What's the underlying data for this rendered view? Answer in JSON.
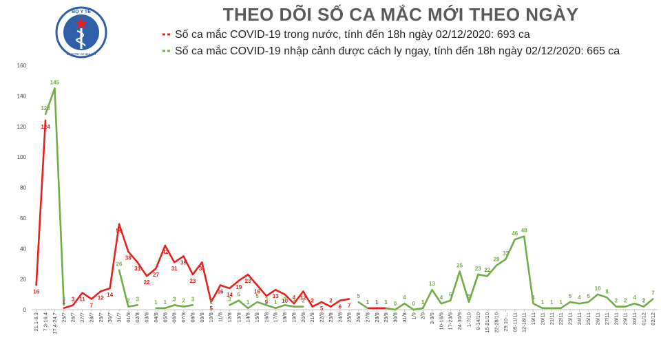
{
  "colors": {
    "domestic": "#e8201c",
    "imported": "#70ad47",
    "title": "#595959",
    "axis": "#bfbfbf",
    "logo_blue": "#2e5fa8"
  },
  "logo": {
    "icon": "ministry-of-health-seal-icon",
    "top_text": "BỘ Y TẾ",
    "bottom_text": "MINISTRY OF HEALTH"
  },
  "chart_data": {
    "type": "line",
    "title": "THEO DÕI SỐ CA MẮC MỚI THEO NGÀY",
    "xlabel": "",
    "ylabel": "",
    "ylim": [
      0,
      160
    ],
    "yticks": [
      0,
      20,
      40,
      60,
      80,
      100,
      120,
      140,
      160
    ],
    "grid": false,
    "legend_position": "top",
    "categories": [
      "21.1-6.3",
      "7.3-16.4",
      "17.4-24.7",
      "25/7",
      "26/7",
      "27/7",
      "28/7",
      "29/7",
      "30/7",
      "31/7",
      "01/8",
      "02/8",
      "03/8",
      "04/8",
      "05/8",
      "06/8",
      "07/8",
      "08/8",
      "09/8",
      "10/8",
      "11/8",
      "12/8",
      "13/8",
      "14/8",
      "15/8",
      "16/8",
      "17/8",
      "18/8",
      "19/8",
      "20/8",
      "21/8",
      "22/8",
      "23/8",
      "24/8",
      "25/8",
      "26/8",
      "27/8",
      "28/8",
      "29/8",
      "30/8",
      "31/8",
      "1/9",
      "2/9",
      "3-9/9",
      "10-16/9",
      "17-23/9",
      "24-30/9",
      "1-7/10",
      "8-14/10",
      "15-21/10",
      "22-28/10",
      "29.10-...",
      "05-11/11",
      "12-18/11",
      "19/11",
      "20/11",
      "21/11",
      "22/11",
      "23/11",
      "24/11",
      "25/11",
      "26/11",
      "27/11",
      "28/11",
      "29/11",
      "30/11",
      "01/12",
      "02/12"
    ],
    "series": [
      {
        "name": "Số ca mắc COVID-19 trong nước, tính đến 18h ngày 02/12/2020: 693 ca",
        "color": "#e8201c",
        "values": [
          16,
          124,
          null,
          1,
          3,
          11,
          7,
          12,
          14,
          56,
          38,
          31,
          22,
          27,
          42,
          31,
          35,
          23,
          31,
          5,
          16,
          14,
          19,
          23,
          16,
          9,
          13,
          10,
          4,
          12,
          2,
          5,
          2,
          6,
          7,
          null,
          1,
          1,
          1,
          null,
          null,
          null,
          1,
          null,
          null,
          null,
          null,
          null,
          null,
          null,
          null,
          null,
          null,
          null,
          null,
          null,
          null,
          null,
          null,
          null,
          null,
          null,
          null,
          null,
          null,
          null,
          2,
          null
        ],
        "labels": [
          "16",
          "124",
          "",
          "1",
          "3",
          "11",
          "7",
          "12",
          "14",
          "56",
          "38",
          "31",
          "22",
          "27",
          "42",
          "31",
          "35",
          "23",
          "31",
          "5",
          "16",
          "14",
          "19",
          "23",
          "16",
          "9",
          "13",
          "10",
          "4",
          "12",
          "2",
          "5",
          "2",
          "6",
          "7",
          "",
          "1",
          "1",
          "1",
          "",
          "",
          "",
          "1",
          "",
          "",
          "",
          "",
          "",
          "",
          "",
          "",
          "",
          "",
          "",
          "",
          "",
          "",
          "",
          "",
          "",
          "",
          "",
          "",
          "",
          "",
          "",
          "2",
          ""
        ]
      },
      {
        "name": "Số ca mắc COVID-19 nhập cảnh được cách ly ngay, tính đến 18h ngày 02/12/2020: 665 ca",
        "color": "#70ad47",
        "values": [
          null,
          128,
          145,
          3,
          null,
          null,
          null,
          null,
          null,
          26,
          2,
          3,
          null,
          1,
          1,
          3,
          2,
          3,
          null,
          1,
          null,
          3,
          6,
          1,
          5,
          3,
          1,
          3,
          2,
          2,
          null,
          null,
          null,
          null,
          null,
          5,
          1,
          null,
          1,
          0,
          4,
          0,
          1,
          13,
          4,
          6,
          25,
          5,
          23,
          22,
          29,
          33,
          46,
          48,
          4,
          1,
          1,
          1,
          5,
          4,
          5,
          10,
          8,
          2,
          2,
          4,
          2,
          7
        ],
        "labels": [
          "",
          "128",
          "145",
          "3",
          "",
          "",
          "",
          "",
          "",
          "26",
          "2",
          "3",
          "",
          "1",
          "1",
          "3",
          "2",
          "3",
          "",
          "1",
          "",
          "3",
          "6",
          "1",
          "5",
          "3",
          "1",
          "3",
          "2",
          "2",
          "",
          "",
          "",
          "",
          "",
          "5",
          "1",
          "",
          "1",
          "0",
          "4",
          "0",
          "1",
          "13",
          "4",
          "6",
          "25",
          "5",
          "23",
          "22",
          "29",
          "33",
          "46",
          "48",
          "4",
          "1",
          "1",
          "1",
          "5",
          "4",
          "5",
          "10",
          "8",
          "2",
          "2",
          "4",
          "2",
          "7"
        ]
      }
    ]
  }
}
